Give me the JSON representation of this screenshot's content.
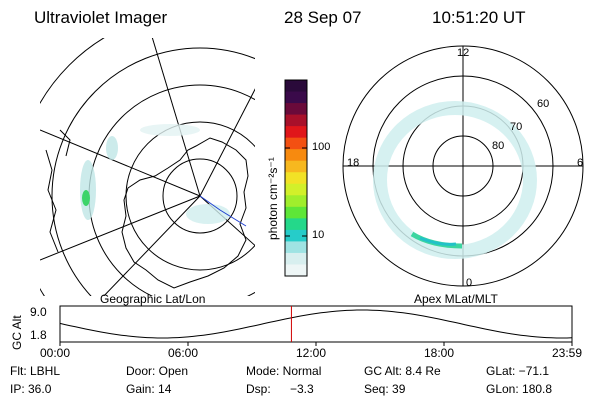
{
  "header": {
    "instrument": "Ultraviolet Imager",
    "date": "28 Sep 07",
    "time": "10:51:20 UT"
  },
  "left_panel": {
    "label": "Geographic Lat/Lon"
  },
  "right_panel": {
    "label": "Apex MLat/MLT",
    "mlt_labels": {
      "top": "12",
      "left": "18",
      "right": "6",
      "bottom": "0"
    },
    "lat_labels": [
      "60",
      "70",
      "80"
    ]
  },
  "colorbar": {
    "unit_label": "photon cm⁻²s⁻¹",
    "tick_100": "100",
    "tick_10": "10",
    "colors": [
      "#2a0a3a",
      "#3a0a4a",
      "#6a0a3a",
      "#a8102a",
      "#e0161a",
      "#f35012",
      "#f78a0f",
      "#f7b81f",
      "#f2e226",
      "#d2f02a",
      "#a0ee2c",
      "#5ee638",
      "#24d88a",
      "#26ccc9",
      "#9fe3e3",
      "#d8efef",
      "#eef6f6"
    ]
  },
  "altitude_plot": {
    "ylabel": "GC Alt",
    "y_ticks": [
      "9.0",
      "1.8"
    ],
    "x_ticks": [
      "00:00",
      "06:00",
      "12:00",
      "18:00",
      "23:59"
    ],
    "cursor_time_fraction": 0.452,
    "cursor_color": "#d00000"
  },
  "info": {
    "filter": "Flt: LBHL",
    "door": "Door: Open",
    "mode": "Mode: Normal",
    "gc_alt": "GC Alt: 8.4 Re",
    "glat": "GLat: −71.1",
    "ip": "IP: 36.0",
    "gain": "Gain: 14",
    "dsp_label": "Dsp:",
    "dsp_value": "−3.3",
    "seq": "Seq: 39",
    "glon": "GLon: 180.8"
  }
}
